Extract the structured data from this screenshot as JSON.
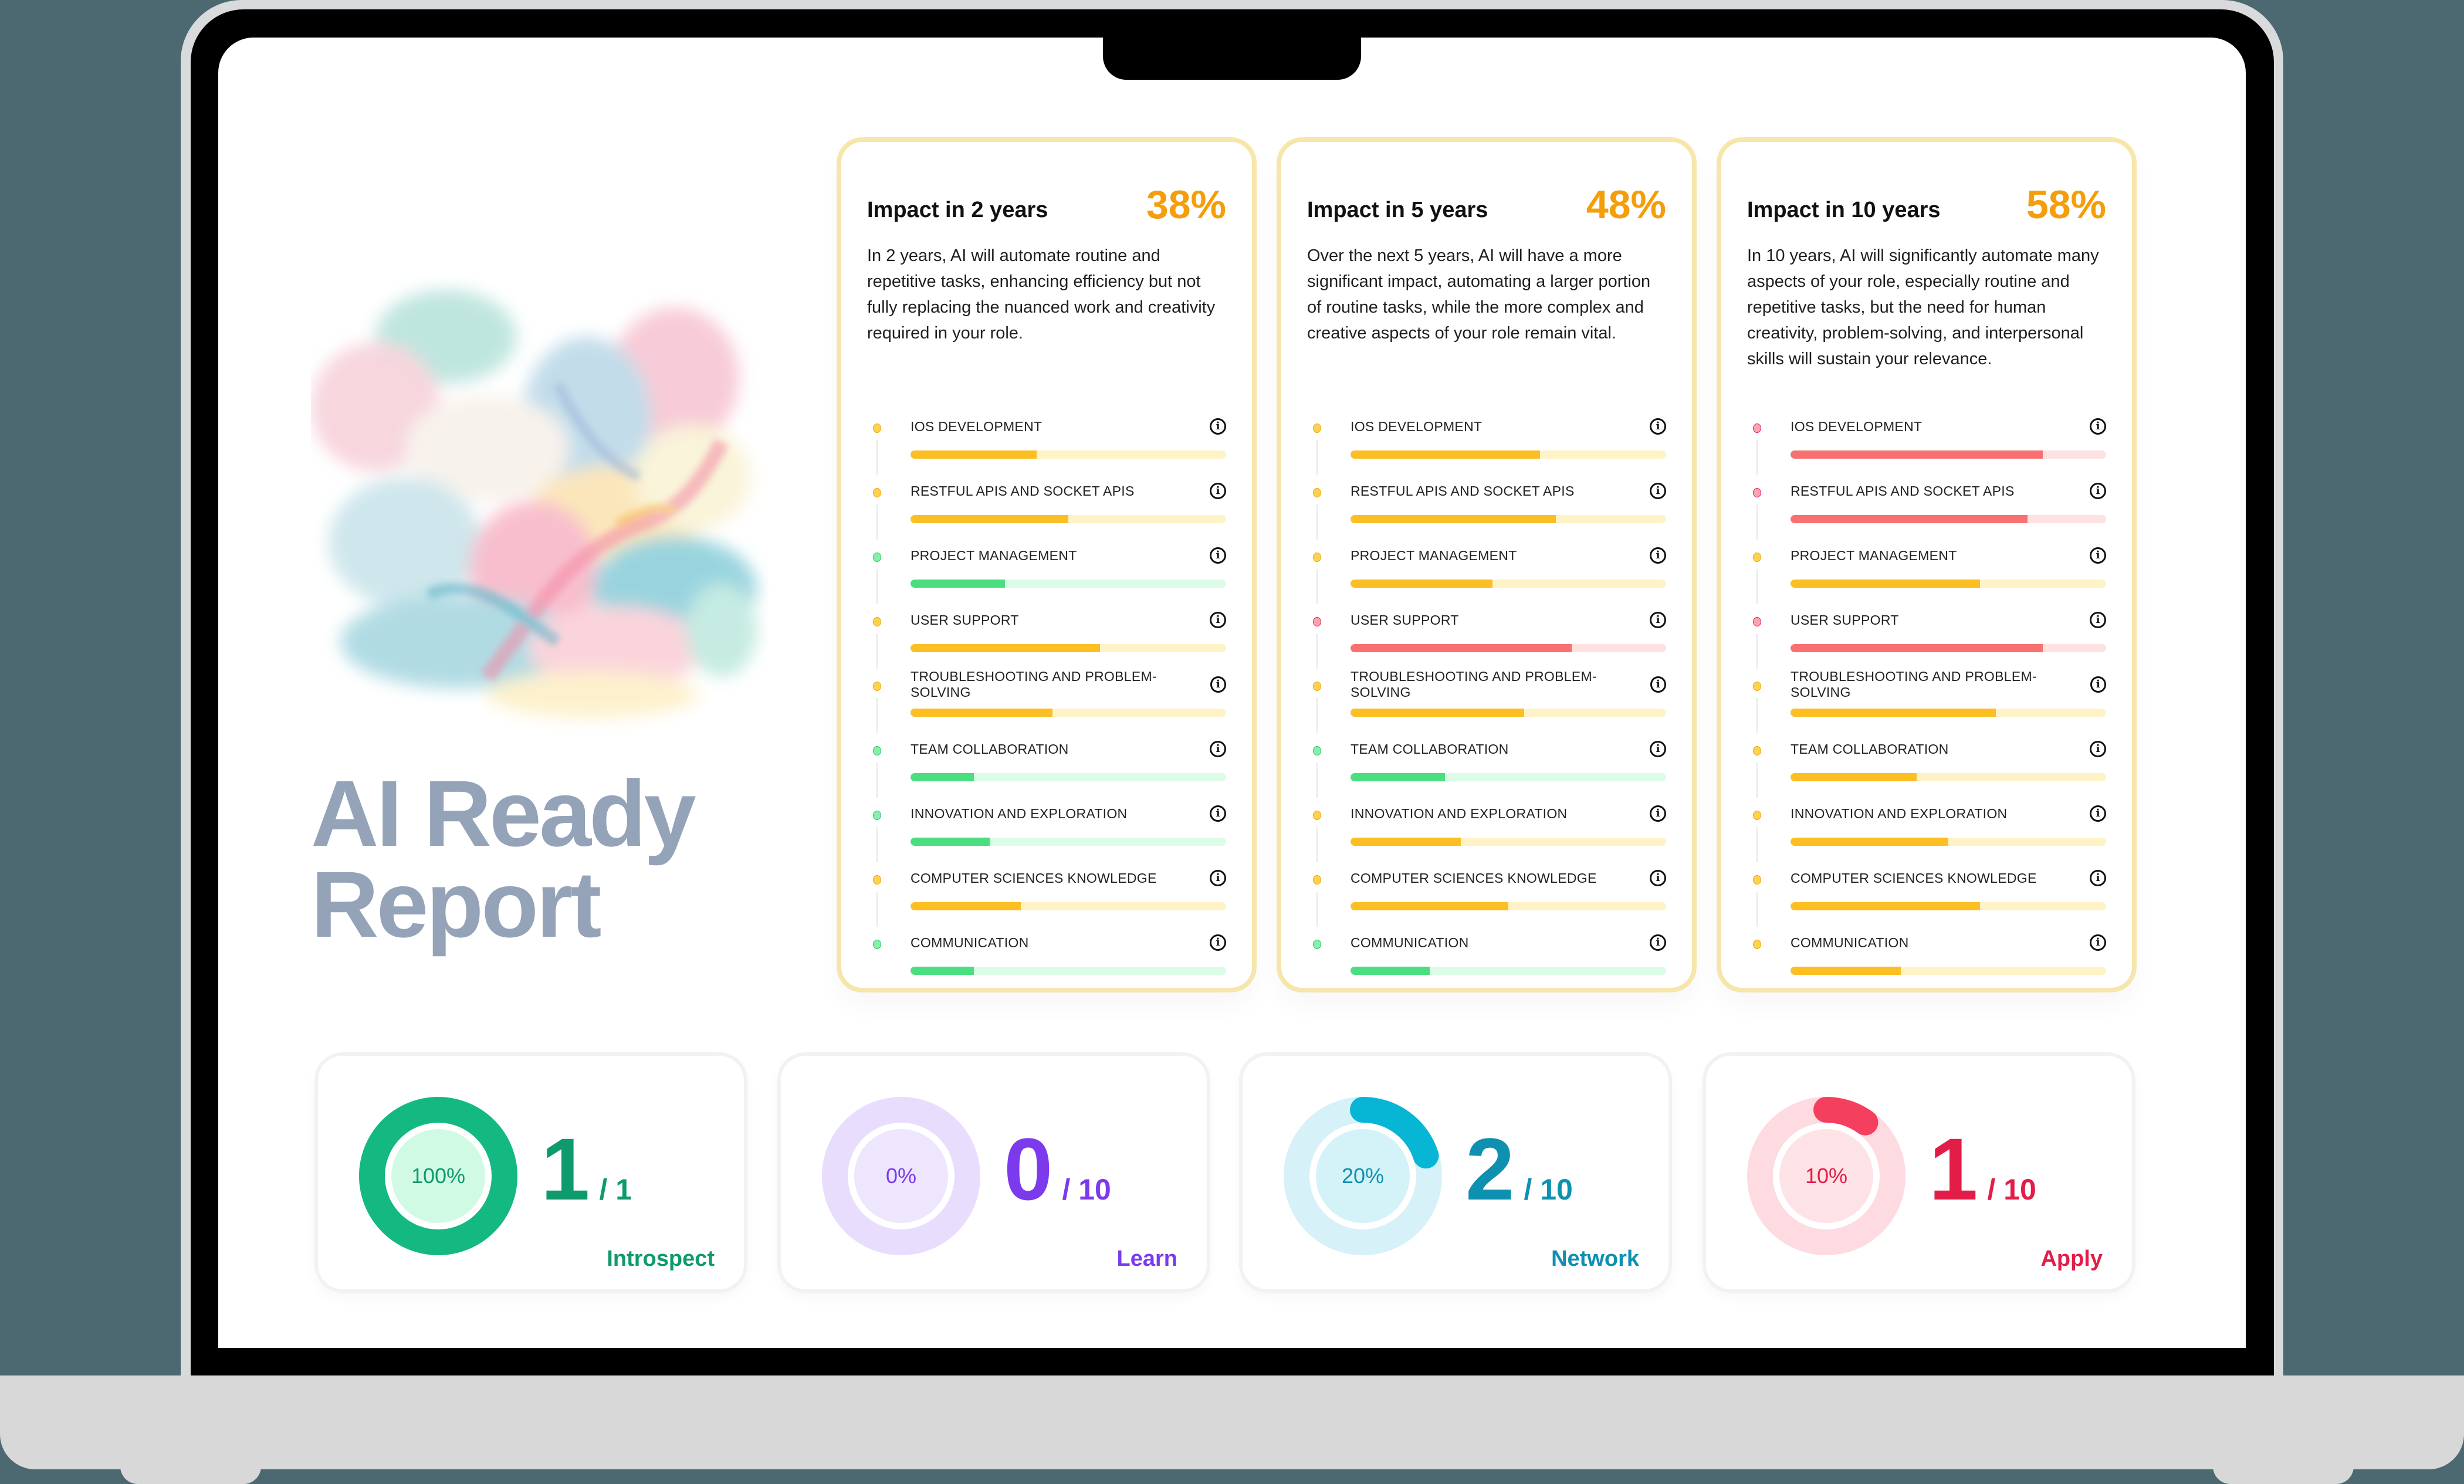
{
  "report": {
    "title_line1": "AI Ready",
    "title_line2": "Report"
  },
  "impact_cards": [
    {
      "title": "Impact in 2 years",
      "percent": "38%",
      "description": "In 2 years, AI will automate routine and repetitive tasks, enhancing efficiency but not fully replacing the nuanced work and creativity required in your role.",
      "skills": [
        {
          "name": "IOS DEVELOPMENT",
          "value": 40,
          "level": "yellow"
        },
        {
          "name": "RESTFUL APIS AND SOCKET APIS",
          "value": 50,
          "level": "yellow"
        },
        {
          "name": "PROJECT MANAGEMENT",
          "value": 30,
          "level": "green"
        },
        {
          "name": "USER SUPPORT",
          "value": 60,
          "level": "yellow"
        },
        {
          "name": "TROUBLESHOOTING AND PROBLEM-SOLVING",
          "value": 45,
          "level": "yellow"
        },
        {
          "name": "TEAM COLLABORATION",
          "value": 20,
          "level": "green"
        },
        {
          "name": "INNOVATION AND EXPLORATION",
          "value": 25,
          "level": "green"
        },
        {
          "name": "COMPUTER SCIENCES KNOWLEDGE",
          "value": 35,
          "level": "yellow"
        },
        {
          "name": "COMMUNICATION",
          "value": 20,
          "level": "green"
        }
      ]
    },
    {
      "title": "Impact in 5 years",
      "percent": "48%",
      "description": "Over the next 5 years, AI will have a more significant impact, automating a larger portion of routine tasks, while the more complex and creative aspects of your role remain vital.",
      "skills": [
        {
          "name": "IOS DEVELOPMENT",
          "value": 60,
          "level": "yellow"
        },
        {
          "name": "RESTFUL APIS AND SOCKET APIS",
          "value": 65,
          "level": "yellow"
        },
        {
          "name": "PROJECT MANAGEMENT",
          "value": 45,
          "level": "yellow"
        },
        {
          "name": "USER SUPPORT",
          "value": 70,
          "level": "red"
        },
        {
          "name": "TROUBLESHOOTING AND PROBLEM-SOLVING",
          "value": 55,
          "level": "yellow"
        },
        {
          "name": "TEAM COLLABORATION",
          "value": 30,
          "level": "green"
        },
        {
          "name": "INNOVATION AND EXPLORATION",
          "value": 35,
          "level": "yellow"
        },
        {
          "name": "COMPUTER SCIENCES KNOWLEDGE",
          "value": 50,
          "level": "yellow"
        },
        {
          "name": "COMMUNICATION",
          "value": 25,
          "level": "green"
        }
      ]
    },
    {
      "title": "Impact in 10 years",
      "percent": "58%",
      "description": "In 10 years, AI will significantly automate many aspects of your role, especially routine and repetitive tasks, but the need for human creativity, problem-solving, and interpersonal skills will sustain your relevance.",
      "skills": [
        {
          "name": "IOS DEVELOPMENT",
          "value": 80,
          "level": "red"
        },
        {
          "name": "RESTFUL APIS AND SOCKET APIS",
          "value": 75,
          "level": "red"
        },
        {
          "name": "PROJECT MANAGEMENT",
          "value": 60,
          "level": "yellow"
        },
        {
          "name": "USER SUPPORT",
          "value": 80,
          "level": "red"
        },
        {
          "name": "TROUBLESHOOTING AND PROBLEM-SOLVING",
          "value": 65,
          "level": "yellow"
        },
        {
          "name": "TEAM COLLABORATION",
          "value": 40,
          "level": "yellow"
        },
        {
          "name": "INNOVATION AND EXPLORATION",
          "value": 50,
          "level": "yellow"
        },
        {
          "name": "COMPUTER SCIENCES KNOWLEDGE",
          "value": 60,
          "level": "yellow"
        },
        {
          "name": "COMMUNICATION",
          "value": 35,
          "level": "yellow"
        }
      ]
    }
  ],
  "stats": [
    {
      "label": "Introspect",
      "percent_label": "100%",
      "percent": 100,
      "count": "1",
      "total": "/ 1",
      "color": "#0e9a6c",
      "arc": "#13b981",
      "track": "#13b981",
      "inner": "#d1fae5"
    },
    {
      "label": "Learn",
      "percent_label": "0%",
      "percent": 0,
      "count": "0",
      "total": "/ 10",
      "color": "#7c3aed",
      "arc": "#7c3aed",
      "track": "#e9ddfd",
      "inner": "#ede6fc"
    },
    {
      "label": "Network",
      "percent_label": "20%",
      "percent": 20,
      "count": "2",
      "total": "/ 10",
      "color": "#0e90b1",
      "arc": "#06b6d4",
      "track": "#d6f1f7",
      "inner": "#d3f3f8"
    },
    {
      "label": "Apply",
      "percent_label": "10%",
      "percent": 10,
      "count": "1",
      "total": "/ 10",
      "color": "#e11d48",
      "arc": "#f43f5e",
      "track": "#fddbe0",
      "inner": "#fde3e6"
    }
  ]
}
